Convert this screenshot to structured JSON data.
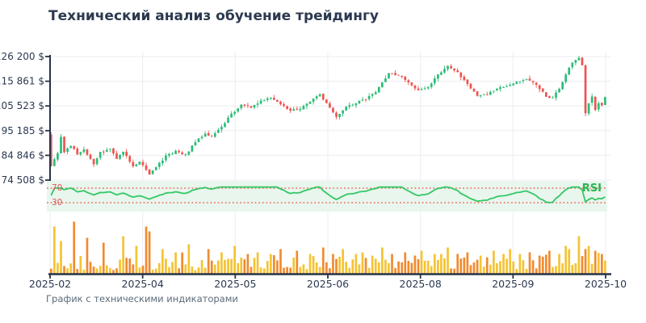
{
  "title": "Технический анализ обучение трейдингу",
  "footer": "График с техническими индикаторами",
  "chart_data": {
    "type": "candlestick",
    "panels": [
      "price",
      "rsi",
      "volume"
    ],
    "x_axis": {
      "tick_labels": [
        "2025-02",
        "2025-04",
        "2025-05",
        "2025-06",
        "2025-08",
        "2025-09",
        "2025-10"
      ]
    },
    "y_axis": {
      "tick_labels": [
        "126 200 $",
        "115 861 $",
        "105 523 $",
        "95 185 $",
        "84 846 $",
        "74 508 $"
      ],
      "tick_values": [
        126200,
        115861,
        105523,
        95185,
        84846,
        74508
      ],
      "range": [
        74508,
        126200
      ],
      "unit": "$"
    },
    "price_series": {
      "candle_count": 170,
      "open_first": 93500,
      "noise": 650,
      "wick": 1300,
      "close_keyframes": [
        [
          0,
          80500
        ],
        [
          2,
          85500
        ],
        [
          3,
          92500
        ],
        [
          4,
          86000
        ],
        [
          6,
          89000
        ],
        [
          8,
          85500
        ],
        [
          10,
          87500
        ],
        [
          13,
          81000
        ],
        [
          15,
          86000
        ],
        [
          18,
          87500
        ],
        [
          20,
          83500
        ],
        [
          22,
          86500
        ],
        [
          25,
          80500
        ],
        [
          27,
          82500
        ],
        [
          30,
          76500
        ],
        [
          32,
          80000
        ],
        [
          35,
          84500
        ],
        [
          38,
          86500
        ],
        [
          41,
          85000
        ],
        [
          44,
          90500
        ],
        [
          47,
          94000
        ],
        [
          49,
          92500
        ],
        [
          52,
          97000
        ],
        [
          55,
          102000
        ],
        [
          58,
          106000
        ],
        [
          61,
          105000
        ],
        [
          64,
          107500
        ],
        [
          67,
          109000
        ],
        [
          70,
          106500
        ],
        [
          73,
          103500
        ],
        [
          76,
          104500
        ],
        [
          79,
          107500
        ],
        [
          82,
          110500
        ],
        [
          85,
          104500
        ],
        [
          87,
          101000
        ],
        [
          90,
          105000
        ],
        [
          93,
          107000
        ],
        [
          96,
          108500
        ],
        [
          99,
          111000
        ],
        [
          101,
          115500
        ],
        [
          103,
          119000
        ],
        [
          106,
          118500
        ],
        [
          109,
          115500
        ],
        [
          112,
          112000
        ],
        [
          115,
          113500
        ],
        [
          118,
          118500
        ],
        [
          121,
          122500
        ],
        [
          124,
          119500
        ],
        [
          127,
          114500
        ],
        [
          130,
          110000
        ],
        [
          133,
          110500
        ],
        [
          136,
          112500
        ],
        [
          139,
          114000
        ],
        [
          142,
          115500
        ],
        [
          145,
          116500
        ],
        [
          148,
          114500
        ],
        [
          151,
          109500
        ],
        [
          153,
          109000
        ],
        [
          155,
          113000
        ],
        [
          157,
          118500
        ],
        [
          159,
          124000
        ],
        [
          161,
          125800
        ],
        [
          162,
          122500
        ],
        [
          163,
          102500
        ],
        [
          164,
          106500
        ],
        [
          165,
          109500
        ],
        [
          166,
          104000
        ],
        [
          167,
          107000
        ],
        [
          168,
          106000
        ],
        [
          169,
          109200
        ]
      ]
    },
    "rsi": {
      "label": "RSI",
      "period": 14,
      "upper": 70,
      "lower": 30
    },
    "volume": {
      "base_min": 4,
      "base_max": 20,
      "spikes": {
        "1": 58,
        "3": 40,
        "7": 64,
        "11": 44,
        "16": 38,
        "22": 46,
        "26": 34,
        "29": 58,
        "30": 52,
        "34": 30,
        "38": 26,
        "42": 36,
        "48": 30,
        "52": 26,
        "56": 34,
        "60": 24,
        "63": 26,
        "67": 24,
        "70": 30,
        "75": 28,
        "79": 24,
        "83": 32,
        "86": 24,
        "89": 30,
        "93": 24,
        "95": 26,
        "98": 22,
        "101": 32,
        "104": 24,
        "108": 26,
        "111": 22,
        "113": 28,
        "117": 24,
        "121": 32,
        "124": 24,
        "127": 26,
        "131": 22,
        "135": 28,
        "138": 24,
        "140": 30,
        "143": 24,
        "146": 26,
        "149": 22,
        "152": 28,
        "155": 24,
        "157": 34,
        "158": 30,
        "161": 46,
        "163": 30,
        "164": 34,
        "166": 28,
        "168": 24
      }
    },
    "colors": {
      "up": "#2cbd77",
      "down": "#ef5350",
      "rsi_line": "#33c765",
      "rsi_label": "#27b550",
      "rsi_band_bg": "#e8f6ed",
      "rsi_guide": "#f07f76",
      "rsi_guide_label": "#e25757",
      "vol_up": "#f5c332",
      "vol_down": "#f08b30",
      "axis": "#273347",
      "tick_text": "#2b3950",
      "grid": "#ededf2"
    }
  }
}
